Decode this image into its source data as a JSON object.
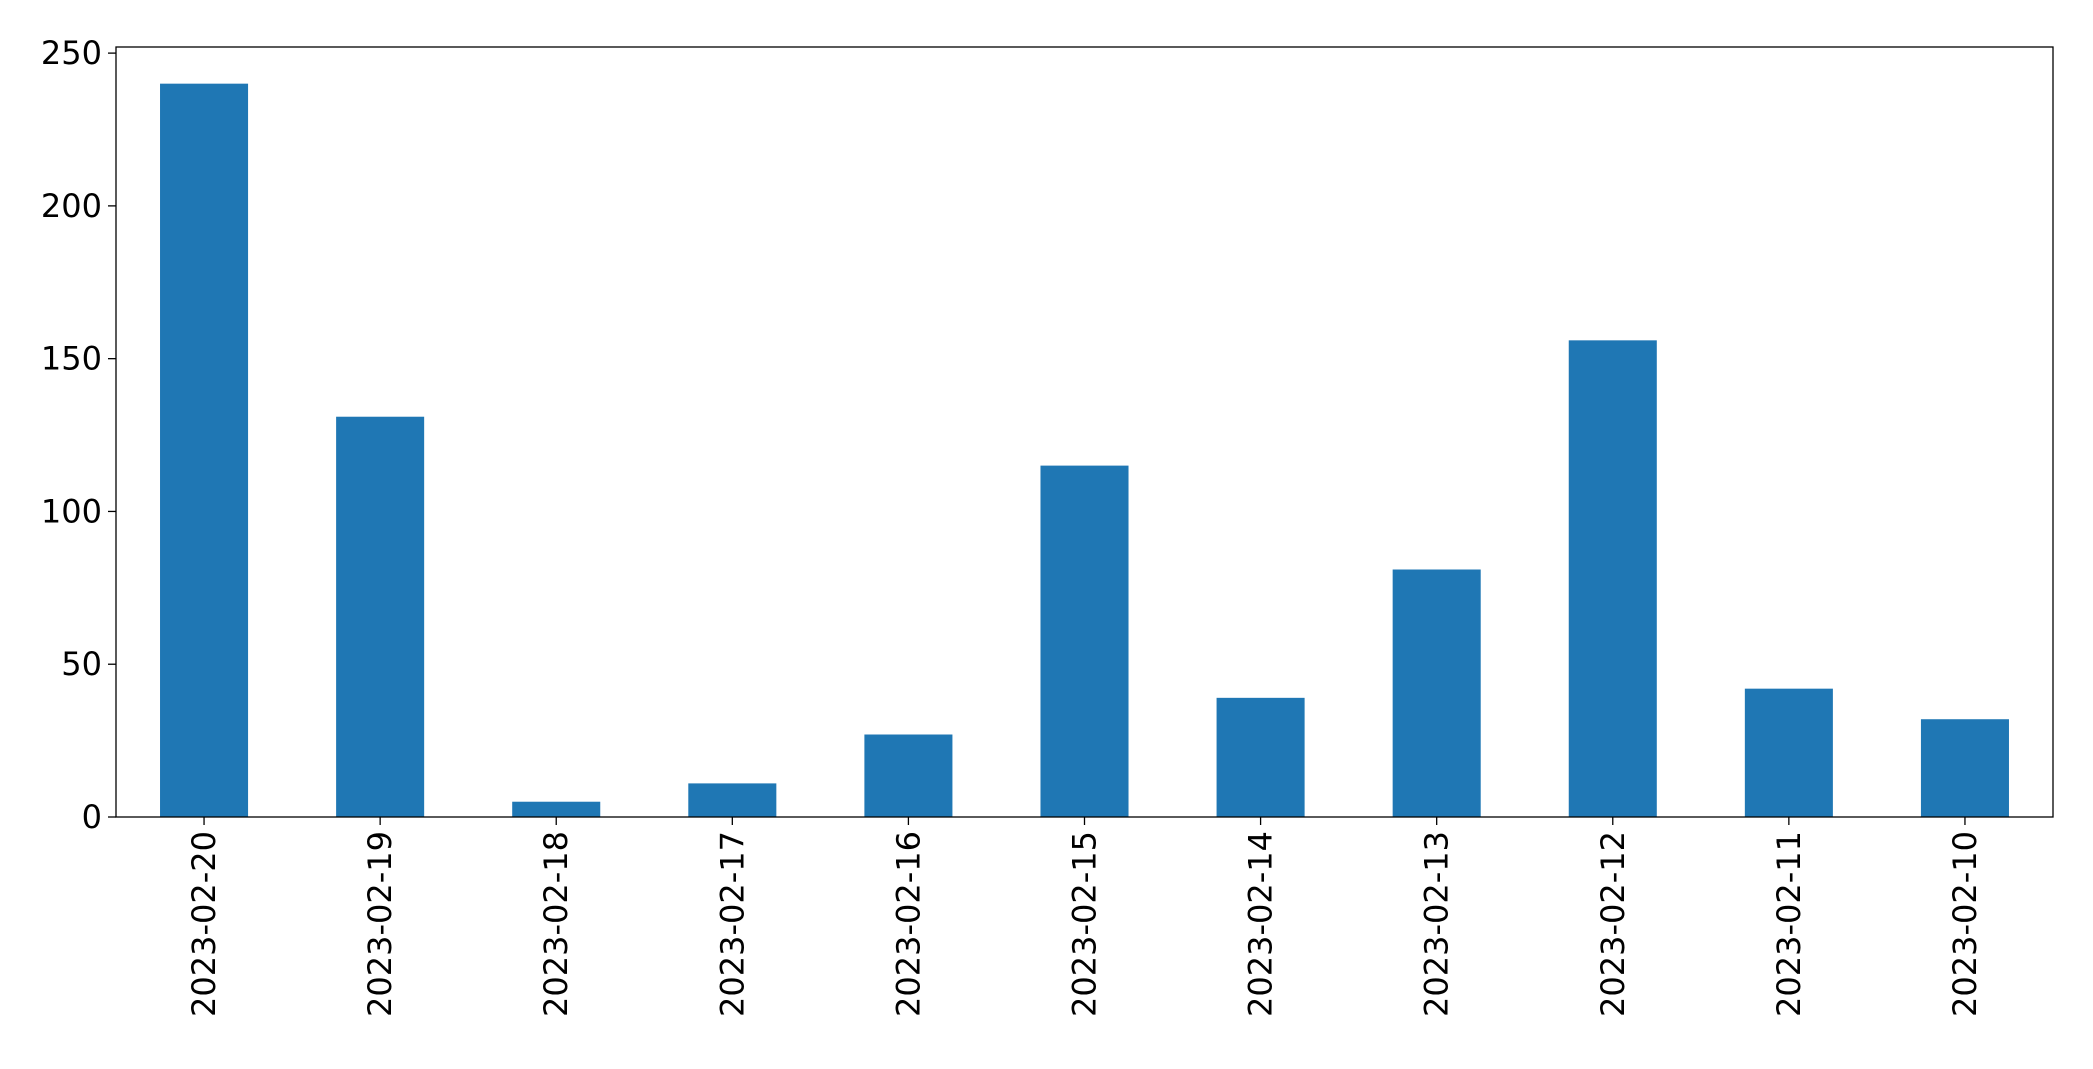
{
  "chart_data": {
    "type": "bar",
    "categories": [
      "2023-02-20",
      "2023-02-19",
      "2023-02-18",
      "2023-02-17",
      "2023-02-16",
      "2023-02-15",
      "2023-02-14",
      "2023-02-13",
      "2023-02-12",
      "2023-02-11",
      "2023-02-10"
    ],
    "values": [
      240,
      131,
      5,
      11,
      27,
      115,
      39,
      81,
      156,
      42,
      32
    ],
    "color": "#1f77b4",
    "ylim": [
      0,
      252
    ],
    "yticks": [
      0,
      50,
      100,
      150,
      200,
      250
    ],
    "grid": false
  }
}
